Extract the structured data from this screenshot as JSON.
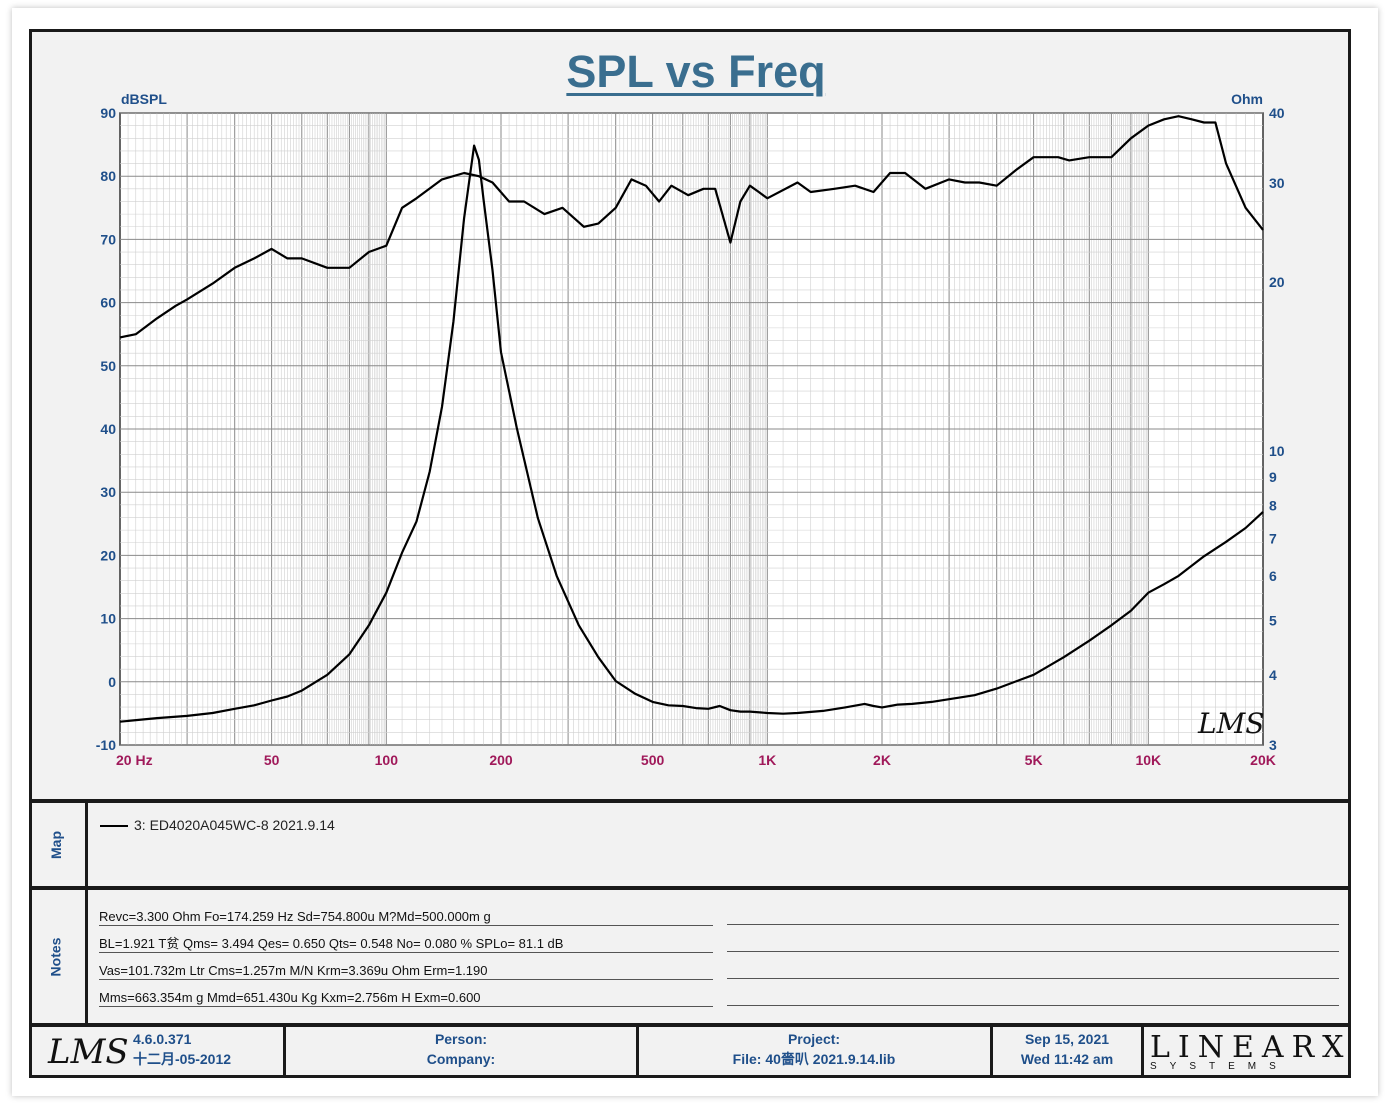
{
  "title": "SPL vs Freq",
  "chart_data": {
    "type": "line",
    "title": "SPL vs Freq",
    "x_scale": "log",
    "xlim": [
      20,
      20000
    ],
    "ylabel_left": "dBSPL",
    "ylim_left": [
      -10,
      90
    ],
    "ylabel_right": "Ohm",
    "ylim_right_log": [
      3,
      40
    ],
    "x_tick_labels": [
      {
        "v": 20,
        "t": "20  Hz"
      },
      {
        "v": 50,
        "t": "50"
      },
      {
        "v": 100,
        "t": "100"
      },
      {
        "v": 200,
        "t": "200"
      },
      {
        "v": 500,
        "t": "500"
      },
      {
        "v": 1000,
        "t": "1K"
      },
      {
        "v": 2000,
        "t": "2K"
      },
      {
        "v": 5000,
        "t": "5K"
      },
      {
        "v": 10000,
        "t": "10K"
      },
      {
        "v": 20000,
        "t": "20K"
      }
    ],
    "y_left_ticks": [
      90,
      80,
      70,
      60,
      50,
      40,
      30,
      20,
      10,
      0,
      -10
    ],
    "y_right_ticks": [
      40,
      30,
      20,
      10,
      9,
      8,
      7,
      6,
      5,
      4,
      3
    ],
    "series": [
      {
        "name": "SPL",
        "axis": "left",
        "x": [
          20,
          22,
          25,
          28,
          30,
          35,
          40,
          45,
          50,
          55,
          60,
          70,
          80,
          90,
          100,
          110,
          120,
          140,
          160,
          175,
          190,
          210,
          230,
          260,
          290,
          330,
          360,
          400,
          440,
          480,
          520,
          560,
          620,
          680,
          730,
          800,
          850,
          900,
          950,
          1000,
          1200,
          1300,
          1500,
          1700,
          1900,
          2100,
          2300,
          2600,
          3000,
          3300,
          3600,
          4000,
          4500,
          5000,
          5400,
          5800,
          6200,
          7000,
          8000,
          9000,
          10000,
          11000,
          12000,
          13000,
          14000,
          15000,
          16000,
          18000,
          20000
        ],
        "y": [
          54.5,
          55,
          57.5,
          59.5,
          60.5,
          63,
          65.5,
          67,
          68.5,
          67,
          67,
          65.5,
          65.5,
          68,
          69,
          75,
          76.5,
          79.5,
          80.5,
          80,
          79,
          76,
          76,
          74,
          75,
          72,
          72.5,
          75,
          79.5,
          78.5,
          76,
          78.5,
          77,
          78,
          78,
          69.5,
          76,
          78.5,
          77.5,
          76.5,
          79,
          77.5,
          78,
          78.5,
          77.5,
          80.5,
          80.5,
          78,
          79.5,
          79,
          79,
          78.5,
          81,
          83,
          83,
          83,
          82.5,
          83,
          83,
          86,
          88,
          89,
          89.5,
          89,
          88.5,
          88.5,
          82,
          75,
          71.5
        ]
      },
      {
        "name": "Impedance",
        "axis": "right",
        "x": [
          20,
          25,
          30,
          35,
          40,
          45,
          50,
          55,
          60,
          70,
          80,
          90,
          100,
          110,
          120,
          130,
          140,
          150,
          160,
          170,
          175,
          180,
          190,
          200,
          220,
          250,
          280,
          320,
          360,
          400,
          450,
          500,
          550,
          600,
          650,
          700,
          750,
          800,
          850,
          900,
          1000,
          1100,
          1200,
          1400,
          1600,
          1800,
          1900,
          2000,
          2100,
          2200,
          2400,
          2700,
          3000,
          3500,
          4000,
          5000,
          6000,
          7000,
          8000,
          9000,
          10000,
          11000,
          12000,
          14000,
          16000,
          18000,
          20000
        ],
        "y": [
          3.3,
          3.35,
          3.38,
          3.42,
          3.48,
          3.53,
          3.6,
          3.66,
          3.75,
          4.0,
          4.35,
          4.9,
          5.6,
          6.6,
          7.5,
          9.2,
          12,
          17,
          26,
          35,
          33,
          28,
          21,
          15,
          11,
          7.6,
          6.0,
          4.9,
          4.3,
          3.9,
          3.7,
          3.58,
          3.53,
          3.52,
          3.49,
          3.48,
          3.52,
          3.46,
          3.44,
          3.44,
          3.42,
          3.41,
          3.42,
          3.45,
          3.5,
          3.55,
          3.52,
          3.5,
          3.52,
          3.54,
          3.55,
          3.58,
          3.62,
          3.68,
          3.78,
          4.0,
          4.3,
          4.6,
          4.9,
          5.2,
          5.6,
          5.8,
          6.0,
          6.5,
          6.9,
          7.3,
          7.8
        ]
      }
    ]
  },
  "legend": {
    "label": "3: ED4020A045WC-8 2021.9.14"
  },
  "side_labels": {
    "map": "Map",
    "notes": "Notes"
  },
  "notes": [
    "Revc=3.300 Ohm  Fo=174.259 Hz  Sd=754.800u M?Md=500.000m g",
    "BL=1.921 T贫  Qms= 3.494  Qes= 0.650  Qts= 0.548  No= 0.080 %  SPLo= 81.1 dB",
    "Vas=101.732m Ltr  Cms=1.257m M/N  Krm=3.369u Ohm  Erm=1.190",
    "Mms=663.354m g  Mmd=651.430u Kg  Kxm=2.756m H  Exm=0.600"
  ],
  "watermark": "LMS",
  "footer": {
    "logo": "LMS",
    "version": "4.6.0.371",
    "build_date": "十二月-05-2012",
    "person_label": "Person:",
    "company_label": "Company:",
    "project_label": "Project:",
    "file_label": "File: 40嗇叭 2021.9.14.lib",
    "date": "Sep 15, 2021",
    "time": "Wed 11:42 am",
    "brand_big": "LINEARX",
    "brand_small": "SYSTEMS"
  },
  "colors": {
    "title": "#3a6e8f",
    "axis_labels": "#1f4f8a",
    "x_tick_labels": "#a0195a",
    "grid": "#9a9a9a"
  }
}
